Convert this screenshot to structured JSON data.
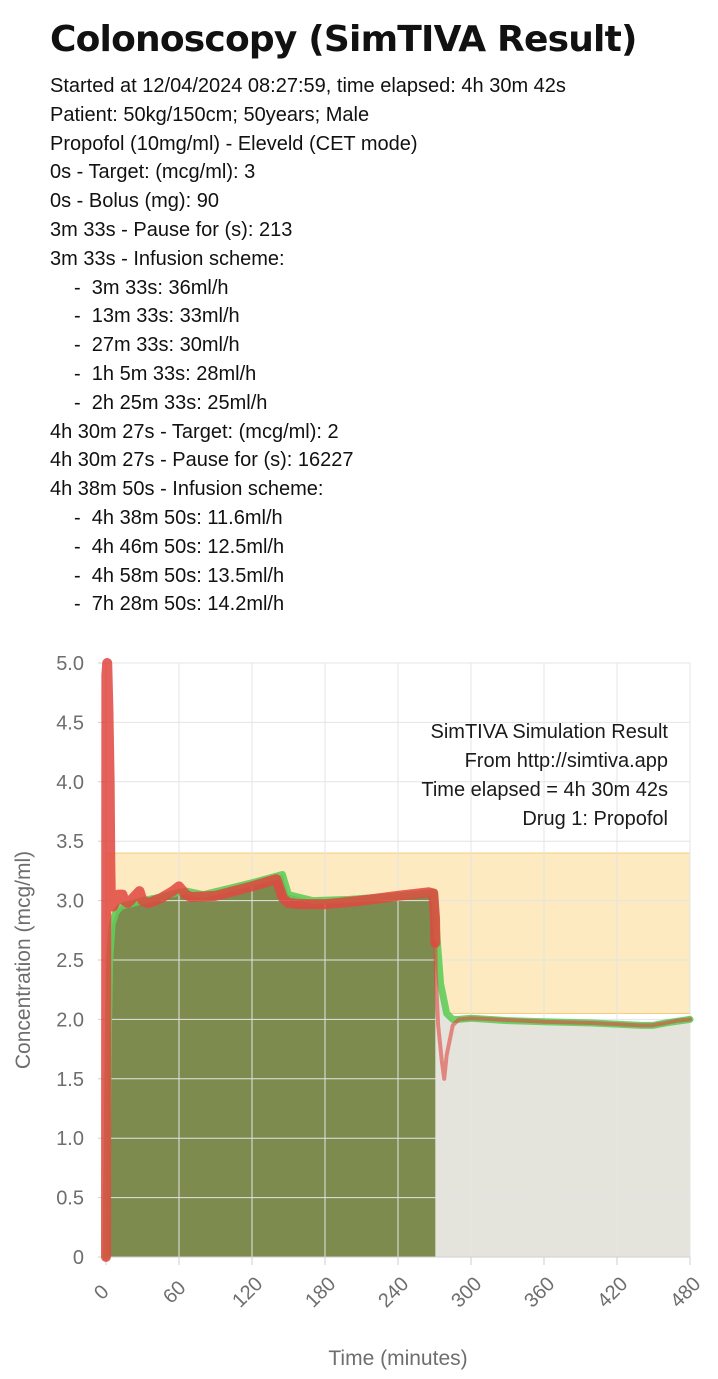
{
  "page": {
    "title": "Colonoscopy (SimTIVA Result)",
    "log": [
      {
        "text": "Started at 12/04/2024 08:27:59, time elapsed: 4h 30m 42s",
        "sub": false
      },
      {
        "text": "Patient: 50kg/150cm; 50years; Male",
        "sub": false
      },
      {
        "text": "Propofol (10mg/ml) - Eleveld (CET mode)",
        "sub": false
      },
      {
        "text": "0s - Target: (mcg/ml): 3",
        "sub": false
      },
      {
        "text": "0s - Bolus (mg): 90",
        "sub": false
      },
      {
        "text": "3m 33s - Pause for (s): 213",
        "sub": false
      },
      {
        "text": "3m 33s - Infusion scheme:",
        "sub": false
      },
      {
        "text": "-  3m 33s: 36ml/h",
        "sub": true
      },
      {
        "text": "-  13m 33s: 33ml/h",
        "sub": true
      },
      {
        "text": "-  27m 33s: 30ml/h",
        "sub": true
      },
      {
        "text": "-  1h 5m 33s: 28ml/h",
        "sub": true
      },
      {
        "text": "-  2h 25m 33s: 25ml/h",
        "sub": true
      },
      {
        "text": "4h 30m 27s - Target: (mcg/ml): 2",
        "sub": false
      },
      {
        "text": "4h 30m 27s - Pause for (s): 16227",
        "sub": false
      },
      {
        "text": "4h 38m 50s - Infusion scheme:",
        "sub": false
      },
      {
        "text": "-  4h 38m 50s: 11.6ml/h",
        "sub": true
      },
      {
        "text": "-  4h 46m 50s: 12.5ml/h",
        "sub": true
      },
      {
        "text": "-  4h 58m 50s: 13.5ml/h",
        "sub": true
      },
      {
        "text": "-  7h 28m 50s: 14.2ml/h",
        "sub": true
      }
    ]
  },
  "chart_data": {
    "type": "line",
    "xlabel": "Time (minutes)",
    "ylabel": "Concentration (mcg/ml)",
    "xlim": [
      0,
      480
    ],
    "ylim": [
      0,
      5
    ],
    "x_ticks": [
      0,
      60,
      120,
      180,
      240,
      300,
      360,
      420,
      480
    ],
    "y_ticks": [
      "0",
      "0.5",
      "1.0",
      "1.5",
      "2.0",
      "2.5",
      "3.0",
      "3.5",
      "4.0",
      "4.5",
      "5.0"
    ],
    "grid": true,
    "annotations": [
      "SimTIVA Simulation Result",
      "From http://simtiva.app",
      "Time elapsed = 4h 30m 42s",
      "Drug 1: Propofol"
    ],
    "annotation_position": "top-right",
    "target_band": {
      "x": [
        0,
        480
      ],
      "y": [
        2.05,
        3.4
      ],
      "color": "#fdeac0"
    },
    "elapsed_minutes": 270.7,
    "colors": {
      "plasma": "#e0473f",
      "effect": "#62cc5a",
      "past_fill": "#7d8b4f",
      "future_fill": "#e3e3db"
    },
    "series": [
      {
        "key": "plasma",
        "x": [
          0,
          0.3,
          1,
          2,
          3,
          3.55,
          4,
          5,
          6,
          8,
          10,
          13.55,
          15,
          18,
          22,
          27.55,
          30,
          35,
          45,
          55,
          60,
          65.55,
          70,
          90,
          120,
          140,
          145.55,
          150,
          160,
          180,
          210,
          240,
          265,
          269,
          270.45,
          271,
          273,
          276,
          278,
          280,
          285,
          290,
          300,
          320,
          360,
          400,
          440,
          448,
          460,
          470,
          480
        ],
        "y": [
          0,
          4.9,
          5.0,
          4.6,
          4.0,
          3.3,
          3.0,
          2.95,
          2.95,
          3.0,
          3.05,
          3.05,
          3.0,
          2.98,
          3.02,
          3.08,
          3.0,
          2.98,
          3.02,
          3.08,
          3.12,
          3.05,
          3.03,
          3.04,
          3.12,
          3.18,
          3.02,
          2.98,
          2.97,
          2.97,
          3.0,
          3.04,
          3.07,
          3.06,
          2.85,
          2.4,
          1.95,
          1.65,
          1.5,
          1.7,
          1.95,
          2.0,
          2.01,
          2.0,
          1.98,
          1.97,
          1.95,
          1.95,
          1.97,
          1.99,
          2.0
        ]
      },
      {
        "key": "effect",
        "x": [
          0,
          1,
          2,
          3,
          5,
          8,
          12,
          15,
          20,
          30,
          45,
          60,
          66,
          80,
          100,
          120,
          145,
          150,
          170,
          200,
          240,
          270,
          272,
          275,
          280,
          285,
          290,
          300,
          330,
          360,
          400,
          440,
          450,
          460,
          480
        ],
        "y": [
          0,
          0.9,
          1.9,
          2.5,
          2.8,
          2.9,
          2.95,
          2.96,
          2.97,
          3.0,
          3.03,
          3.07,
          3.08,
          3.05,
          3.1,
          3.15,
          3.22,
          3.05,
          3.0,
          3.01,
          3.04,
          3.07,
          2.7,
          2.3,
          2.05,
          2.0,
          2.0,
          2.01,
          1.99,
          1.98,
          1.97,
          1.95,
          1.95,
          1.97,
          2.0
        ]
      }
    ]
  }
}
